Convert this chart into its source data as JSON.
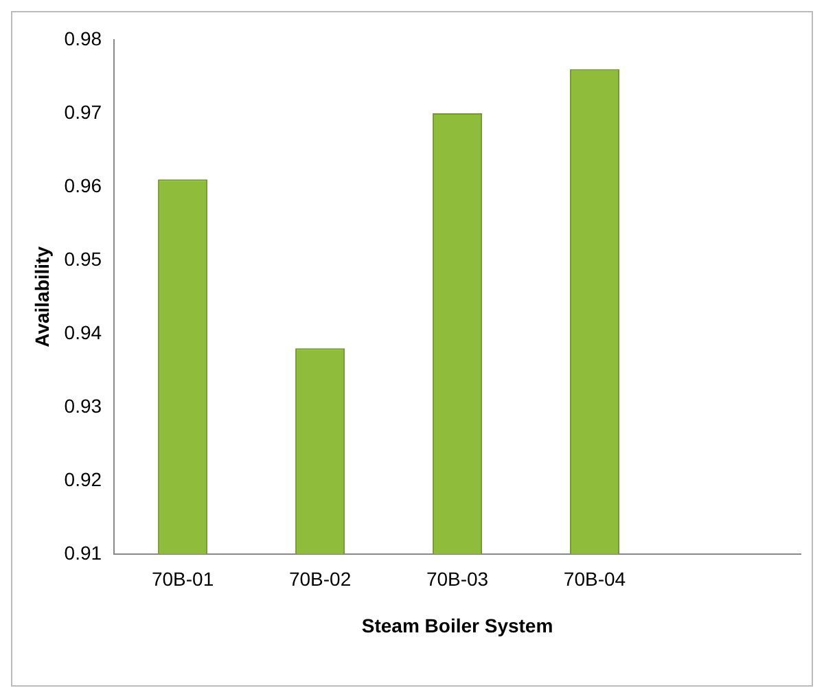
{
  "chart_data": {
    "type": "bar",
    "xlabel": "Steam Boiler System",
    "ylabel": "Availability",
    "categories": [
      "70B-01",
      "70B-02",
      "70B-03",
      "70B-04",
      null
    ],
    "values": [
      0.961,
      0.938,
      0.97,
      0.976,
      null
    ],
    "color": "#8fbc3a",
    "ylim": [
      0.91,
      0.98
    ],
    "yticks": [
      0.91,
      0.92,
      0.93,
      0.94,
      0.95,
      0.96,
      0.97,
      0.98
    ],
    "grid": false,
    "legend": false
  }
}
